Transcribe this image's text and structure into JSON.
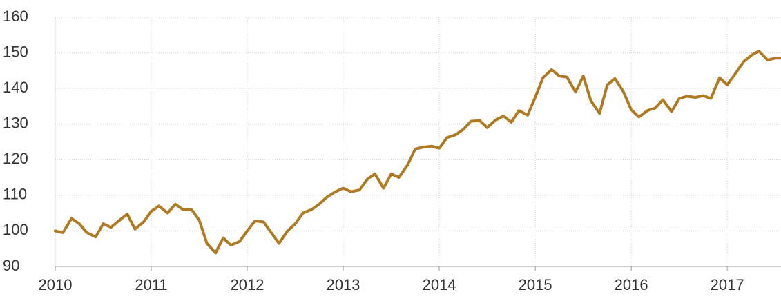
{
  "chart_data": {
    "type": "line",
    "x": [
      2010,
      2010.08,
      2010.17,
      2010.25,
      2010.33,
      2010.42,
      2010.5,
      2010.58,
      2010.67,
      2010.75,
      2010.83,
      2010.92,
      2011,
      2011.08,
      2011.17,
      2011.25,
      2011.33,
      2011.42,
      2011.5,
      2011.58,
      2011.67,
      2011.75,
      2011.83,
      2011.92,
      2012,
      2012.08,
      2012.17,
      2012.25,
      2012.33,
      2012.42,
      2012.5,
      2012.58,
      2012.67,
      2012.75,
      2012.83,
      2012.92,
      2013,
      2013.08,
      2013.17,
      2013.25,
      2013.33,
      2013.42,
      2013.5,
      2013.58,
      2013.67,
      2013.75,
      2013.83,
      2013.92,
      2014,
      2014.08,
      2014.17,
      2014.25,
      2014.33,
      2014.42,
      2014.5,
      2014.58,
      2014.67,
      2014.75,
      2014.83,
      2014.92,
      2015,
      2015.08,
      2015.17,
      2015.25,
      2015.33,
      2015.42,
      2015.5,
      2015.58,
      2015.67,
      2015.75,
      2015.83,
      2015.92,
      2016,
      2016.08,
      2016.17,
      2016.25,
      2016.33,
      2016.42,
      2016.5,
      2016.58,
      2016.67,
      2016.75,
      2016.83,
      2016.92,
      2017,
      2017.08,
      2017.17,
      2017.25,
      2017.33,
      2017.42,
      2017.5,
      2017.56
    ],
    "series": [
      {
        "color": "#b07a22",
        "values": [
          100,
          99.5,
          103.5,
          102,
          99.5,
          98.3,
          102,
          101,
          103,
          104.7,
          100.5,
          102.5,
          105.5,
          107,
          105,
          107.5,
          106,
          106,
          103,
          96.5,
          93.8,
          98,
          96,
          97,
          100,
          102.8,
          102.5,
          99.5,
          96.5,
          100,
          102,
          105,
          106,
          107.5,
          109.5,
          111,
          112,
          111,
          111.5,
          114.5,
          116,
          112,
          116,
          115,
          118.5,
          123,
          123.5,
          123.8,
          123.2,
          126.2,
          127,
          128.5,
          130.8,
          131,
          129,
          131,
          132.3,
          130.5,
          133.8,
          132.5,
          137.5,
          143,
          145.3,
          143.5,
          143.2,
          139,
          143.5,
          136.5,
          133,
          141,
          142.8,
          139,
          134,
          132,
          133.8,
          134.5,
          136.8,
          133.5,
          137.2,
          137.8,
          137.5,
          138,
          137.2,
          143,
          141,
          144,
          147.5,
          149.3,
          150.5,
          148,
          148.5,
          148.5
        ]
      }
    ],
    "xlim": [
      2010,
      2017.56
    ],
    "xticks": [
      2010,
      2011,
      2012,
      2013,
      2014,
      2015,
      2016,
      2017
    ],
    "ylim": [
      90,
      160
    ],
    "yticks": [
      90,
      100,
      110,
      120,
      130,
      140,
      150,
      160
    ],
    "grid": true
  }
}
